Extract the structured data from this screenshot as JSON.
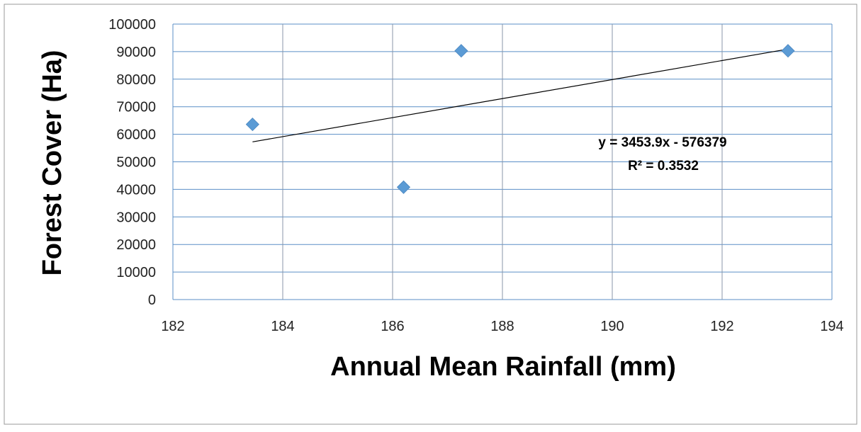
{
  "chart_data": {
    "type": "scatter",
    "title": "",
    "xlabel": "Annual Mean Rainfall (mm)",
    "ylabel": "Forest Cover (Ha)",
    "xlim": [
      182,
      194
    ],
    "ylim": [
      0,
      100000
    ],
    "xticks": [
      182,
      184,
      186,
      188,
      190,
      192,
      194
    ],
    "yticks": [
      0,
      10000,
      20000,
      30000,
      40000,
      50000,
      60000,
      70000,
      80000,
      90000,
      100000
    ],
    "grid": true,
    "legend": "none",
    "series": [
      {
        "x": [
          183.45,
          186.2,
          187.25,
          193.2
        ],
        "y": [
          63600,
          40800,
          90300,
          90300
        ],
        "color": "#5B9BD5",
        "marker": "diamond"
      }
    ],
    "trendline": {
      "type": "linear",
      "slope": 3453.9,
      "intercept": -576379,
      "x_range": [
        183.45,
        193.2
      ],
      "color": "#000000",
      "equation_label": "y = 3453.9x - 576379",
      "r2_label": "R² = 0.3532"
    },
    "colors": {
      "gridline": "#5B8FC7",
      "frame": "#9A9A9A"
    }
  }
}
